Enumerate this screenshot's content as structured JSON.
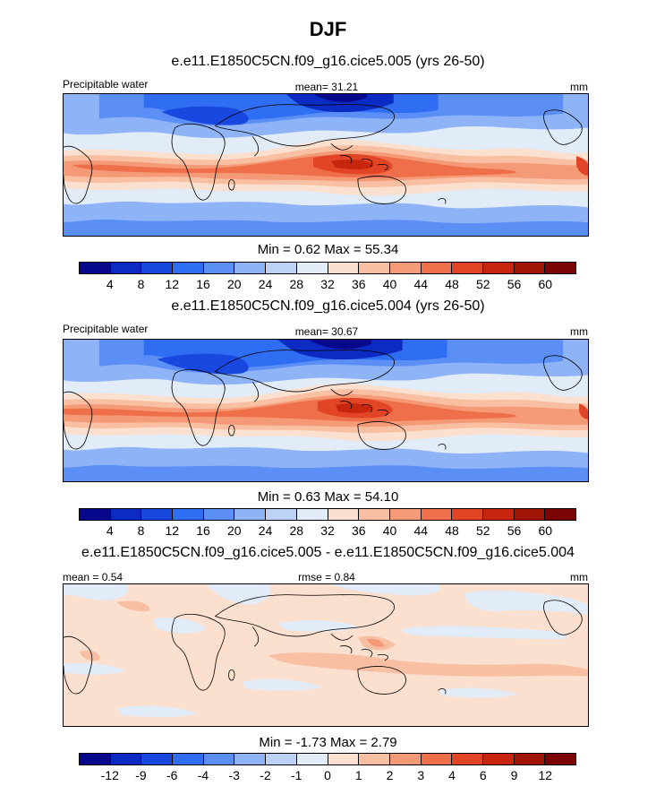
{
  "title": "DJF",
  "panels": [
    {
      "id": "p1",
      "title": "e.e11.E1850C5CN.f09_g16.cice5.005 (yrs 26-50)",
      "left_label": "Precipitable water",
      "center_label": "mean=  31.21",
      "units": "mm",
      "minmax": "Min =   0.62 Max =  55.34",
      "colorbar": {
        "colors": [
          "#08088c",
          "#0b2bc2",
          "#1848e0",
          "#2f6df2",
          "#5c8ff5",
          "#8fb3f7",
          "#bcd2f7",
          "#e2ebf8",
          "#fbe0cf",
          "#f9bfa3",
          "#f59a77",
          "#ee6f49",
          "#e24526",
          "#c8250f",
          "#a11507",
          "#7d0404"
        ],
        "ticks": [
          "4",
          "8",
          "12",
          "16",
          "20",
          "24",
          "28",
          "32",
          "36",
          "40",
          "44",
          "48",
          "52",
          "56",
          "60"
        ]
      }
    },
    {
      "id": "p2",
      "title": "e.e11.E1850C5CN.f09_g16.cice5.004 (yrs 26-50)",
      "left_label": "Precipitable water",
      "center_label": "mean=  30.67",
      "units": "mm",
      "minmax": "Min =   0.63 Max =  54.10",
      "colorbar": {
        "colors": [
          "#08088c",
          "#0b2bc2",
          "#1848e0",
          "#2f6df2",
          "#5c8ff5",
          "#8fb3f7",
          "#bcd2f7",
          "#e2ebf8",
          "#fbe0cf",
          "#f9bfa3",
          "#f59a77",
          "#ee6f49",
          "#e24526",
          "#c8250f",
          "#a11507",
          "#7d0404"
        ],
        "ticks": [
          "4",
          "8",
          "12",
          "16",
          "20",
          "24",
          "28",
          "32",
          "36",
          "40",
          "44",
          "48",
          "52",
          "56",
          "60"
        ]
      }
    },
    {
      "id": "p3",
      "title": "e.e11.E1850C5CN.f09_g16.cice5.005 - e.e11.E1850C5CN.f09_g16.cice5.004",
      "left_label": "mean =   0.54",
      "center_label": "rmse =   0.84",
      "units": "mm",
      "minmax": "Min =  -1.73 Max =   2.79",
      "colorbar": {
        "colors": [
          "#08088c",
          "#0b2bc2",
          "#1848e0",
          "#2f6df2",
          "#5c8ff5",
          "#8fb3f7",
          "#bcd2f7",
          "#e2ebf8",
          "#fbe0cf",
          "#f9bfa3",
          "#f59a77",
          "#ee6f49",
          "#e24526",
          "#c8250f",
          "#a11507",
          "#7d0404"
        ],
        "ticks": [
          "-12",
          "-9",
          "-6",
          "-4",
          "-3",
          "-2",
          "-1",
          "0",
          "1",
          "2",
          "3",
          "4",
          "6",
          "9",
          "12"
        ]
      }
    }
  ]
}
